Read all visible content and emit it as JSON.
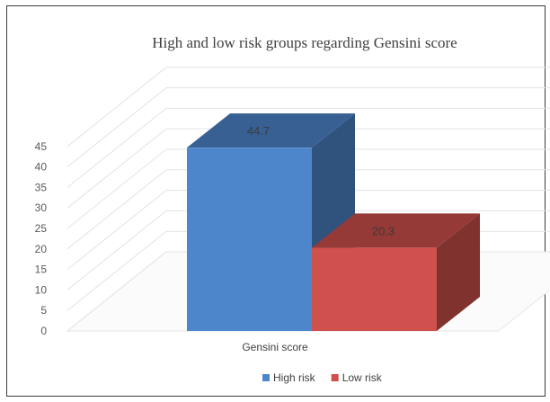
{
  "chart_data": {
    "type": "bar",
    "title": "High and low risk groups regarding Gensini score",
    "xlabel": "Gensini score",
    "ylabel": "",
    "categories": [
      "Gensini score"
    ],
    "series": [
      {
        "name": "High risk",
        "values": [
          44.7
        ],
        "color": "#4e86cc"
      },
      {
        "name": "Low risk",
        "values": [
          20.3
        ],
        "color": "#cf504c"
      }
    ],
    "data_labels": [
      "44.7",
      "20.3"
    ],
    "y_ticks": [
      "0",
      "5",
      "10",
      "15",
      "20",
      "25",
      "30",
      "35",
      "40",
      "45"
    ],
    "ylim": [
      0,
      45
    ],
    "grid": true,
    "legend_position": "bottom",
    "style": "3d-clustered-column"
  }
}
